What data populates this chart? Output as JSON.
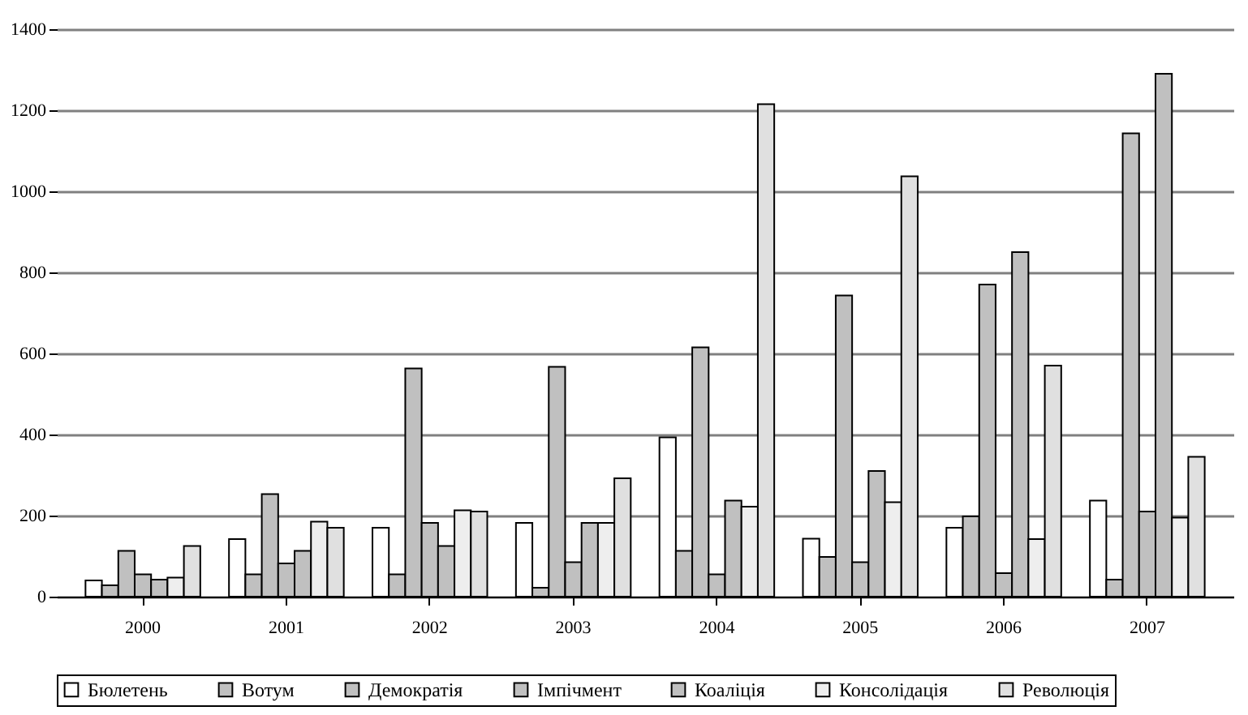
{
  "chart_data": {
    "type": "bar",
    "categories": [
      "2000",
      "2001",
      "2002",
      "2003",
      "2004",
      "2005",
      "2006",
      "2007"
    ],
    "series": [
      {
        "name": "Бюлетень",
        "color": "#ffffff",
        "values": [
          40,
          142,
          170,
          182,
          393,
          143,
          170,
          237
        ]
      },
      {
        "name": "Вотум",
        "color": "#c0c0c0",
        "values": [
          28,
          55,
          55,
          22,
          113,
          98,
          198,
          42
        ]
      },
      {
        "name": "Демократія",
        "color": "#c0c0c0",
        "values": [
          113,
          253,
          563,
          567,
          615,
          743,
          770,
          1143
        ]
      },
      {
        "name": "Імпічмент",
        "color": "#c0c0c0",
        "values": [
          55,
          82,
          182,
          85,
          55,
          85,
          58,
          210
        ]
      },
      {
        "name": "Коаліція",
        "color": "#c0c0c0",
        "values": [
          42,
          113,
          125,
          182,
          237,
          310,
          850,
          1290
        ]
      },
      {
        "name": "Консолідація",
        "color": "#eeeeee",
        "values": [
          47,
          185,
          213,
          182,
          222,
          233,
          142,
          195
        ]
      },
      {
        "name": "Революція",
        "color": "#e0e0e0",
        "values": [
          125,
          170,
          210,
          292,
          1215,
          1037,
          570,
          345
        ]
      }
    ],
    "ylim": [
      0,
      1400
    ],
    "yticks": [
      0,
      200,
      400,
      600,
      800,
      1000,
      1200,
      1400
    ],
    "grid": "y",
    "legend": "bottom"
  }
}
